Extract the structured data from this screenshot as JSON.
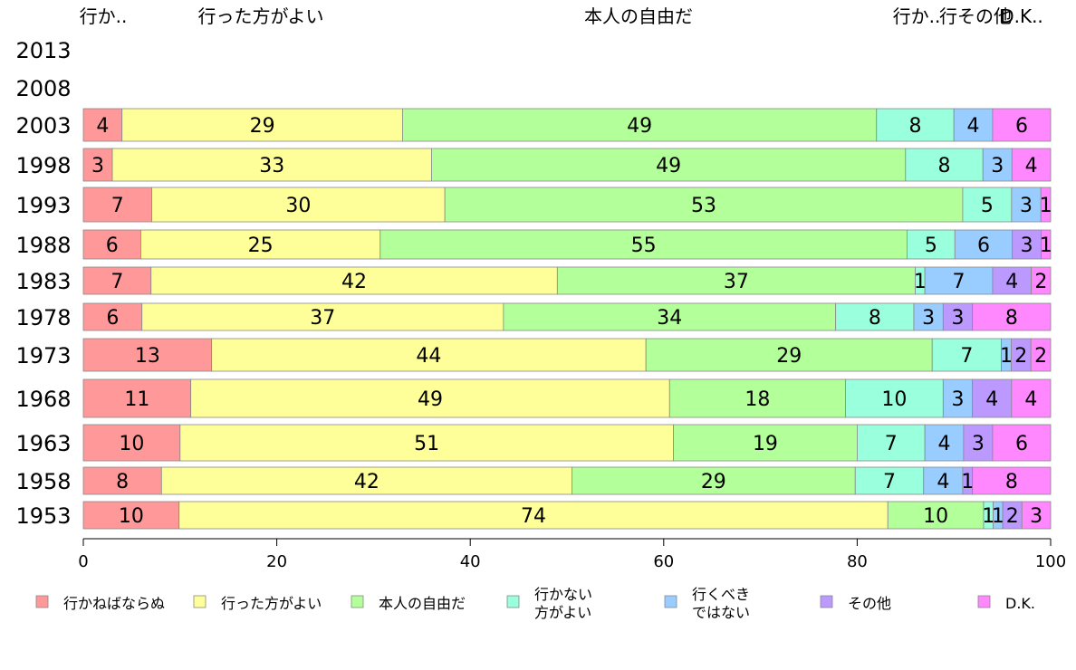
{
  "chart_data": {
    "type": "bar",
    "orientation": "horizontal",
    "stacked": true,
    "categories": [
      "2013",
      "2008",
      "2003",
      "1998",
      "1993",
      "1988",
      "1983",
      "1978",
      "1973",
      "1968",
      "1963",
      "1958",
      "1953"
    ],
    "top_labels": [
      "行か..",
      "行った方がよい",
      "本人の自由だ",
      "行か..",
      "行その他",
      "D.K.."
    ],
    "series": [
      {
        "name": "行かねばならぬ",
        "color": "#ff9999",
        "values": [
          null,
          null,
          4,
          3,
          7,
          6,
          7,
          6,
          13,
          11,
          10,
          8,
          10
        ]
      },
      {
        "name": "行った方がよい",
        "color": "#ffff99",
        "values": [
          null,
          null,
          29,
          33,
          30,
          25,
          42,
          37,
          44,
          49,
          51,
          42,
          74
        ]
      },
      {
        "name": "本人の自由だ",
        "color": "#b3ff99",
        "values": [
          null,
          null,
          49,
          49,
          53,
          55,
          37,
          34,
          29,
          18,
          19,
          29,
          10
        ]
      },
      {
        "name": "行かない\n方がよい",
        "color": "#99ffdd",
        "values": [
          null,
          null,
          8,
          8,
          5,
          5,
          1,
          8,
          7,
          10,
          7,
          7,
          1
        ]
      },
      {
        "name": "行くべき\nではない",
        "color": "#99ccff",
        "values": [
          null,
          null,
          4,
          3,
          3,
          6,
          7,
          3,
          1,
          3,
          4,
          4,
          1
        ]
      },
      {
        "name": "その他",
        "color": "#bb99ff",
        "values": [
          null,
          null,
          0,
          0,
          0,
          3,
          4,
          3,
          2,
          4,
          3,
          1,
          2
        ]
      },
      {
        "name": "D.K.",
        "color": "#ff88ff",
        "values": [
          null,
          null,
          6,
          4,
          1,
          1,
          2,
          8,
          2,
          4,
          6,
          8,
          3
        ]
      }
    ],
    "xlim": [
      0,
      100
    ],
    "xticks": [
      "0",
      "20",
      "40",
      "60",
      "80",
      "100"
    ],
    "legend_position": "bottom"
  }
}
